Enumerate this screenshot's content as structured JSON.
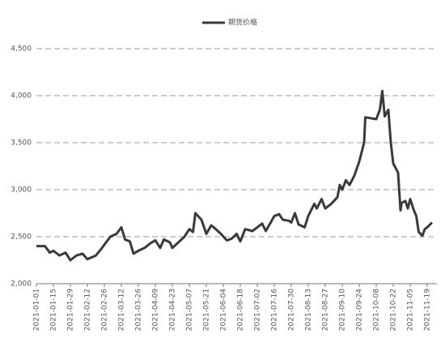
{
  "chart_data": {
    "type": "line",
    "series": [
      {
        "name": "期货价格",
        "color": "#3a3a3a",
        "values": [
          2400,
          2400,
          2330,
          2350,
          2300,
          2330,
          2250,
          2300,
          2320,
          2260,
          2300,
          2380,
          2450,
          2500,
          2530,
          2600,
          2470,
          2450,
          2320,
          2350,
          2380,
          2430,
          2460,
          2380,
          2470,
          2440,
          2380,
          2440,
          2500,
          2580,
          2550,
          2750,
          2680,
          2530,
          2620,
          2590,
          2530,
          2460,
          2480,
          2530,
          2450,
          2580,
          2560,
          2600,
          2640,
          2560,
          2650,
          2720,
          2740,
          2680,
          2670,
          2650,
          2750,
          2630,
          2600,
          2720,
          2850,
          2800,
          2900,
          2800,
          2850,
          2920,
          3050,
          3000,
          3100,
          3050,
          3150,
          3300,
          3500,
          3770,
          3750,
          3850,
          4050,
          3780,
          3850,
          3500,
          3280,
          3180,
          2780,
          2860,
          2880,
          2800,
          2900,
          2780,
          2720,
          2550,
          2510,
          2580,
          2600,
          2650
        ]
      }
    ],
    "x": [
      "2021-01-01",
      "2021-01-08",
      "2021-01-12",
      "2021-01-15",
      "2021-01-20",
      "2021-01-25",
      "2021-01-29",
      "2021-02-03",
      "2021-02-08",
      "2021-02-12",
      "2021-02-19",
      "2021-02-24",
      "2021-02-28",
      "2021-03-03",
      "2021-03-08",
      "2021-03-12",
      "2021-03-15",
      "2021-03-19",
      "2021-03-22",
      "2021-03-26",
      "2021-03-31",
      "2021-04-05",
      "2021-04-09",
      "2021-04-13",
      "2021-04-16",
      "2021-04-21",
      "2021-04-23",
      "2021-04-28",
      "2021-05-03",
      "2021-05-07",
      "2021-05-10",
      "2021-05-12",
      "2021-05-17",
      "2021-05-21",
      "2021-05-25",
      "2021-05-28",
      "2021-06-02",
      "2021-06-07",
      "2021-06-11",
      "2021-06-15",
      "2021-06-18",
      "2021-06-22",
      "2021-06-28",
      "2021-07-02",
      "2021-07-06",
      "2021-07-09",
      "2021-07-13",
      "2021-07-16",
      "2021-07-20",
      "2021-07-23",
      "2021-07-28",
      "2021-07-30",
      "2021-08-02",
      "2021-08-05",
      "2021-08-10",
      "2021-08-13",
      "2021-08-18",
      "2021-08-20",
      "2021-08-24",
      "2021-08-27",
      "2021-09-01",
      "2021-09-06",
      "2021-09-08",
      "2021-09-10",
      "2021-09-13",
      "2021-09-16",
      "2021-09-20",
      "2021-09-24",
      "2021-09-28",
      "2021-09-29",
      "2021-10-08",
      "2021-10-11",
      "2021-10-13",
      "2021-10-15",
      "2021-10-18",
      "2021-10-20",
      "2021-10-22",
      "2021-10-26",
      "2021-10-28",
      "2021-10-29",
      "2021-11-01",
      "2021-11-03",
      "2021-11-05",
      "2021-11-08",
      "2021-11-10",
      "2021-11-12",
      "2021-11-15",
      "2021-11-17",
      "2021-11-19",
      "2021-11-23"
    ],
    "xlim": [
      "2021-01-01",
      "2021-11-27"
    ],
    "xticks": [
      "2021-01-01",
      "2021-01-15",
      "2021-01-29",
      "2021-02-12",
      "2021-02-26",
      "2021-03-12",
      "2021-03-26",
      "2021-04-09",
      "2021-04-23",
      "2021-05-07",
      "2021-05-21",
      "2021-06-04",
      "2021-06-18",
      "2021-07-02",
      "2021-07-16",
      "2021-07-30",
      "2021-08-13",
      "2021-08-27",
      "2021-09-10",
      "2021-09-24",
      "2021-10-08",
      "2021-10-22",
      "2021-11-05",
      "2021-11-19"
    ],
    "ylim": [
      2000,
      4500
    ],
    "yticks": [
      {
        "value": 2000,
        "label": "2,000"
      },
      {
        "value": 2500,
        "label": "2,500"
      },
      {
        "value": 3000,
        "label": "3,000"
      },
      {
        "value": 3500,
        "label": "3,500"
      },
      {
        "value": 4000,
        "label": "4,000"
      },
      {
        "value": 4500,
        "label": "4,500"
      }
    ],
    "grid": true
  }
}
